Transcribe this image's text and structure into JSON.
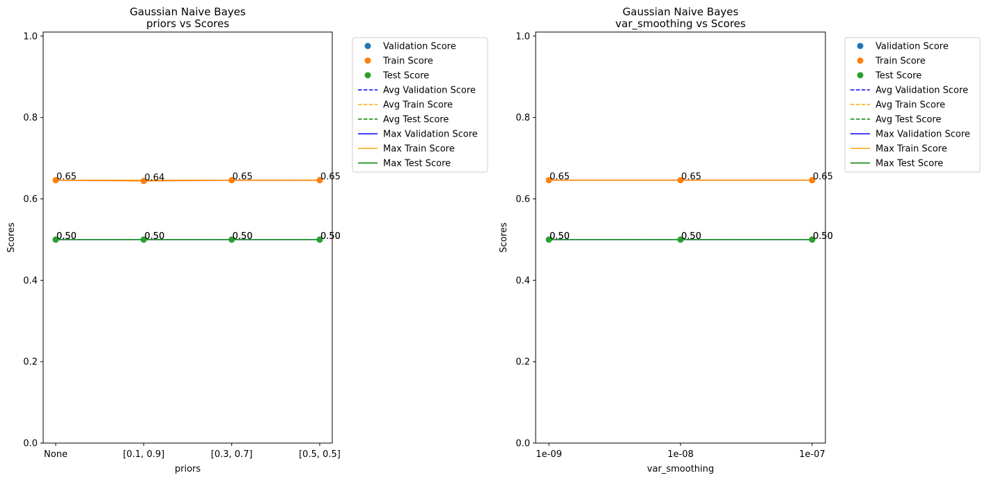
{
  "chart_data": [
    {
      "type": "line",
      "title": "Gaussian Naive Bayes",
      "subtitle": "priors vs Scores",
      "xlabel": "priors",
      "ylabel": "Scores",
      "categories": [
        "None",
        "[0.1, 0.9]",
        "[0.3, 0.7]",
        "[0.5, 0.5]"
      ],
      "ylim": [
        0.0,
        1.01
      ],
      "yticks": [
        0.0,
        0.2,
        0.4,
        0.6,
        0.8,
        1.0
      ],
      "ytick_labels": [
        "0.0",
        "0.2",
        "0.4",
        "0.6",
        "0.8",
        "1.0"
      ],
      "grid": false,
      "legend_position": "outside-right",
      "series": [
        {
          "name": "Validation Score",
          "values": [
            0.5,
            0.5,
            0.5,
            0.5
          ],
          "labels": [
            "0.50",
            "0.50",
            "0.50",
            "0.50"
          ]
        },
        {
          "name": "Train Score",
          "values": [
            0.646,
            0.644,
            0.646,
            0.646
          ],
          "labels": [
            "0.65",
            "0.64",
            "0.65",
            "0.65"
          ]
        },
        {
          "name": "Test Score",
          "values": [
            0.5,
            0.5,
            0.5,
            0.5
          ],
          "labels": [
            "0.50",
            "0.50",
            "0.50",
            "0.50"
          ]
        }
      ],
      "averages": [
        {
          "name": "Avg Validation Score",
          "value": 0.5
        },
        {
          "name": "Avg Train Score",
          "value": 0.6455
        },
        {
          "name": "Avg Test Score",
          "value": 0.5
        }
      ],
      "maxima": [
        {
          "name": "Max Validation Score",
          "value": 0.5
        },
        {
          "name": "Max Train Score",
          "value": 0.646
        },
        {
          "name": "Max Test Score",
          "value": 0.5
        }
      ]
    },
    {
      "type": "line",
      "title": "Gaussian Naive Bayes",
      "subtitle": "var_smoothing vs Scores",
      "xlabel": "var_smoothing",
      "ylabel": "Scores",
      "categories": [
        "1e-09",
        "1e-08",
        "1e-07"
      ],
      "ylim": [
        0.0,
        1.01
      ],
      "yticks": [
        0.0,
        0.2,
        0.4,
        0.6,
        0.8,
        1.0
      ],
      "ytick_labels": [
        "0.0",
        "0.2",
        "0.4",
        "0.6",
        "0.8",
        "1.0"
      ],
      "grid": false,
      "legend_position": "outside-right",
      "series": [
        {
          "name": "Validation Score",
          "values": [
            0.5,
            0.5,
            0.5
          ],
          "labels": [
            "0.50",
            "0.50",
            "0.50"
          ]
        },
        {
          "name": "Train Score",
          "values": [
            0.646,
            0.646,
            0.646
          ],
          "labels": [
            "0.65",
            "0.65",
            "0.65"
          ]
        },
        {
          "name": "Test Score",
          "values": [
            0.5,
            0.5,
            0.5
          ],
          "labels": [
            "0.50",
            "0.50",
            "0.50"
          ]
        }
      ],
      "averages": [
        {
          "name": "Avg Validation Score",
          "value": 0.5
        },
        {
          "name": "Avg Train Score",
          "value": 0.646
        },
        {
          "name": "Avg Test Score",
          "value": 0.5
        }
      ],
      "maxima": [
        {
          "name": "Max Validation Score",
          "value": 0.5
        },
        {
          "name": "Max Train Score",
          "value": 0.646
        },
        {
          "name": "Max Test Score",
          "value": 0.5
        }
      ]
    }
  ],
  "colors": {
    "validation_marker": "#1f77b4",
    "train_marker": "#ff7f0e",
    "test_marker": "#2ca02c",
    "validation_line": "#0000ff",
    "train_line": "#ffa500",
    "test_line": "#008000"
  },
  "legend": {
    "items": [
      {
        "label": "Validation Score",
        "kind": "marker",
        "color_key": "validation_marker"
      },
      {
        "label": "Train Score",
        "kind": "marker",
        "color_key": "train_marker"
      },
      {
        "label": "Test Score",
        "kind": "marker",
        "color_key": "test_marker"
      },
      {
        "label": "Avg Validation Score",
        "kind": "dashed",
        "color_key": "validation_line"
      },
      {
        "label": "Avg Train Score",
        "kind": "dashed",
        "color_key": "train_line"
      },
      {
        "label": "Avg Test Score",
        "kind": "dashed",
        "color_key": "test_line"
      },
      {
        "label": "Max Validation Score",
        "kind": "solid",
        "color_key": "validation_line"
      },
      {
        "label": "Max Train Score",
        "kind": "solid",
        "color_key": "train_line"
      },
      {
        "label": "Max Test Score",
        "kind": "solid",
        "color_key": "test_line"
      }
    ]
  }
}
